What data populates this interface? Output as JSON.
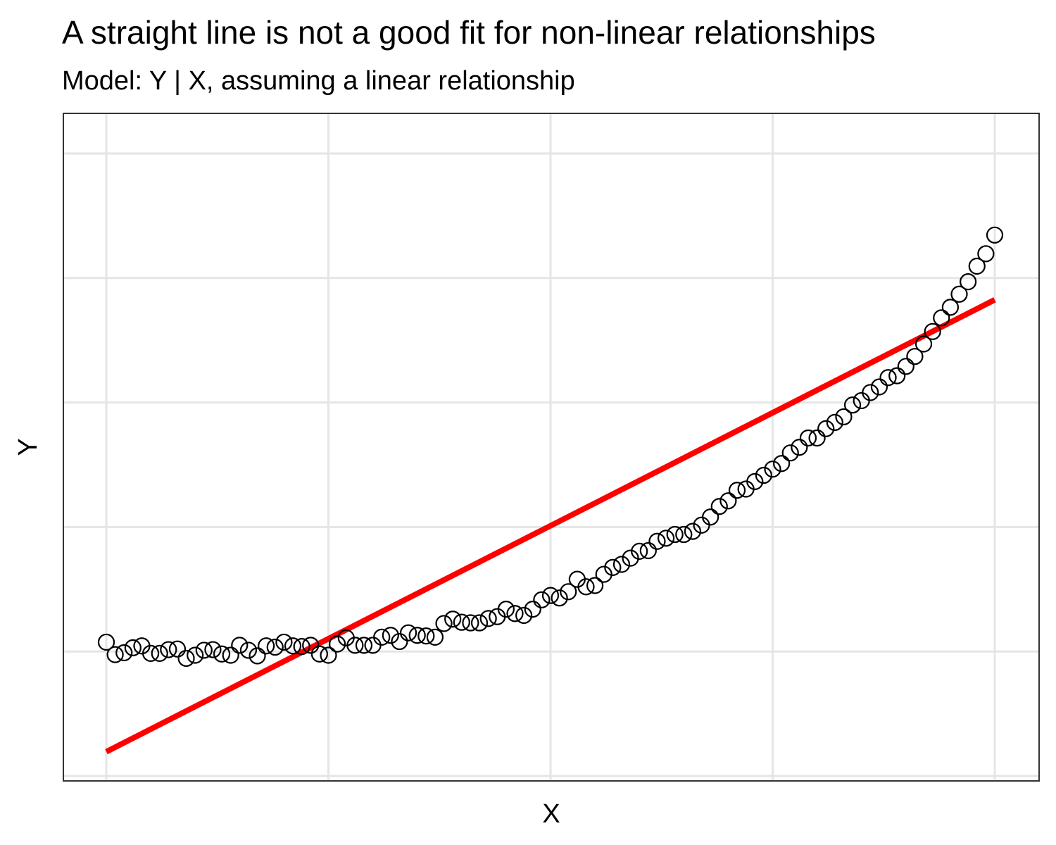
{
  "chart_data": {
    "type": "scatter",
    "title": "A straight line is not a good fit for non-linear relationships",
    "subtitle": "Model: Y | X, assuming a linear relationship",
    "xlabel": "X",
    "ylabel": "Y",
    "xlim": [
      0,
      100
    ],
    "ylim": [
      -10,
      100
    ],
    "grid": true,
    "tick_labels_visible": false,
    "x_gridlines": [
      0,
      25,
      50,
      75,
      100
    ],
    "y_gridlines": [
      -10,
      10,
      30,
      50,
      70,
      90
    ],
    "colors": {
      "points": "#000000",
      "fit_line": "#ff0000",
      "grid": "#e5e5e5",
      "panel_border": "#333333"
    },
    "series": [
      {
        "kind": "points",
        "x": [
          0,
          1,
          2,
          3,
          4,
          5,
          6,
          7,
          8,
          9,
          10,
          11,
          12,
          13,
          14,
          15,
          16,
          17,
          18,
          19,
          20,
          21,
          22,
          23,
          24,
          25,
          26,
          27,
          28,
          29,
          30,
          31,
          32,
          33,
          34,
          35,
          36,
          37,
          38,
          39,
          40,
          41,
          42,
          43,
          44,
          45,
          46,
          47,
          48,
          49,
          50,
          51,
          52,
          53,
          54,
          55,
          56,
          57,
          58,
          59,
          60,
          61,
          62,
          63,
          64,
          65,
          66,
          67,
          68,
          69,
          70,
          71,
          72,
          73,
          74,
          75,
          76,
          77,
          78,
          79,
          80,
          81,
          82,
          83,
          84,
          85,
          86,
          87,
          88,
          89,
          90,
          91,
          92,
          93,
          94,
          95,
          96,
          97,
          98,
          99,
          100
        ],
        "y": [
          11.5,
          9.5,
          9.8,
          10.6,
          10.9,
          9.7,
          9.7,
          10.3,
          10.4,
          8.9,
          9.4,
          10.2,
          10.3,
          9.6,
          9.4,
          11.0,
          10.2,
          9.3,
          10.9,
          10.7,
          11.5,
          10.9,
          10.8,
          11.0,
          9.6,
          9.4,
          11.2,
          12.2,
          11.0,
          11.0,
          11.0,
          12.3,
          12.6,
          11.6,
          13.0,
          12.6,
          12.5,
          12.3,
          14.5,
          15.2,
          14.7,
          14.6,
          14.6,
          15.3,
          15.6,
          16.8,
          16.1,
          15.8,
          16.8,
          18.3,
          19.0,
          18.6,
          19.6,
          21.6,
          20.4,
          20.6,
          22.4,
          23.5,
          24.0,
          25.0,
          26.1,
          26.2,
          27.7,
          28.2,
          28.8,
          28.8,
          29.3,
          30.3,
          31.6,
          33.3,
          34.2,
          35.9,
          36.1,
          37.3,
          38.3,
          39.3,
          40.2,
          41.9,
          42.8,
          44.3,
          44.3,
          45.8,
          46.8,
          47.7,
          49.6,
          50.3,
          51.6,
          52.5,
          54.0,
          54.3,
          55.8,
          57.4,
          59.4,
          61.4,
          63.6,
          65.3,
          67.4,
          69.4,
          71.9,
          73.9,
          76.9
        ]
      },
      {
        "kind": "line",
        "name": "linear fit",
        "x": [
          0,
          100
        ],
        "y": [
          -6.1,
          66.5
        ]
      }
    ]
  }
}
